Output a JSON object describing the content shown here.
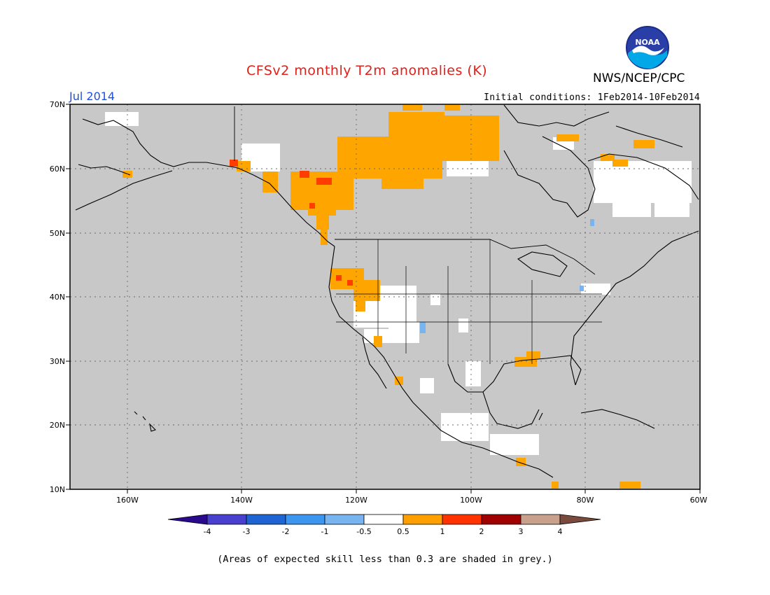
{
  "title": "CFSv2 monthly T2m anomalies (K)",
  "agency": "NWS/NCEP/CPC",
  "logo_text": "NOAA",
  "valid_month": "Jul 2014",
  "initial_conditions": "Initial conditions: 1Feb2014-10Feb2014",
  "footnote": "(Areas of expected skill less than 0.3 are shaded in grey.)",
  "colors": {
    "skill_grey": "#c8c8c8",
    "neutral": "#ffffff",
    "warm_05_1": "#ffa500",
    "warm_1_2": "#ff3d00",
    "warm_2_3": "#a00000",
    "cool_05_1": "#78b4f0",
    "coastline": "#000000"
  },
  "map": {
    "lat_labels": [
      "70N",
      "60N",
      "50N",
      "40N",
      "30N",
      "20N",
      "10N"
    ],
    "lon_labels": [
      "160W",
      "140W",
      "120W",
      "100W",
      "80W",
      "60W"
    ],
    "lat_range": [
      10,
      70
    ],
    "lon_range": [
      -170,
      -60
    ]
  },
  "colorbar": {
    "labels": [
      "-4",
      "-3",
      "-2",
      "-1",
      "-0.5",
      "0.5",
      "1",
      "2",
      "3",
      "4"
    ],
    "colors": [
      "#2a0a8c",
      "#4a40d0",
      "#1e64d2",
      "#3c96f0",
      "#78b4f0",
      "#ffffff",
      "#ffa000",
      "#ff3200",
      "#a00000",
      "#c8a08c",
      "#7a4a3c"
    ]
  }
}
